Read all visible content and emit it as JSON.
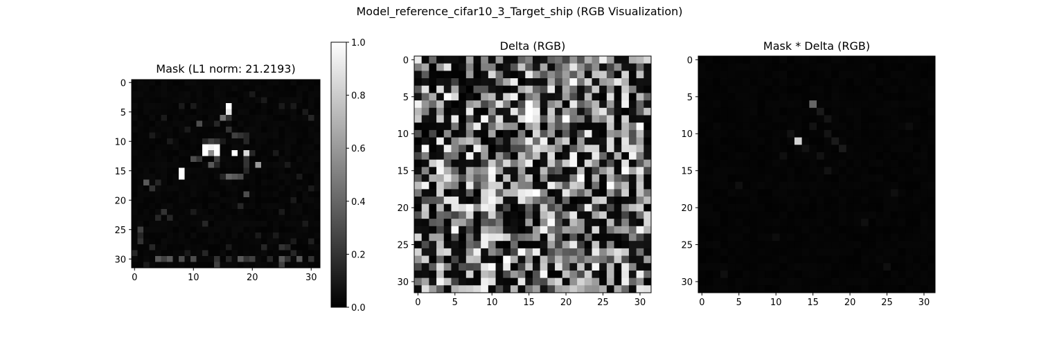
{
  "figure": {
    "title": "Model_reference_cifar10_3_Target_ship (RGB Visualization)"
  },
  "chart_data": [
    {
      "type": "heatmap",
      "title": "Mask (L1 norm: 21.2193)",
      "colormap": "gray",
      "grid": false,
      "size": [
        32,
        32
      ],
      "xticks": [
        0,
        10,
        20,
        30
      ],
      "yticks": [
        0,
        5,
        10,
        15,
        20,
        25,
        30
      ],
      "vmin": 0,
      "vmax": 1,
      "base_level": 0.03,
      "cells": [
        [
          12,
          11,
          1.0
        ],
        [
          13,
          11,
          0.95
        ],
        [
          14,
          11,
          1.0
        ],
        [
          12,
          12,
          1.0
        ],
        [
          13,
          12,
          0.55
        ],
        [
          14,
          12,
          1.0
        ],
        [
          16,
          4,
          1.0
        ],
        [
          16,
          5,
          0.9
        ],
        [
          15,
          6,
          0.45
        ],
        [
          16,
          6,
          0.2
        ],
        [
          8,
          15,
          1.0
        ],
        [
          8,
          16,
          1.0
        ],
        [
          17,
          12,
          1.0
        ],
        [
          19,
          12,
          0.85
        ],
        [
          21,
          14,
          0.6
        ],
        [
          10,
          13,
          0.3
        ],
        [
          11,
          13,
          0.2
        ],
        [
          14,
          13,
          0.25
        ],
        [
          19,
          13,
          0.2
        ],
        [
          12,
          10,
          0.15
        ],
        [
          13,
          10,
          0.25
        ],
        [
          14,
          10,
          0.2
        ],
        [
          11,
          7,
          0.3
        ],
        [
          14,
          7,
          0.15
        ],
        [
          16,
          8,
          0.2
        ],
        [
          17,
          9,
          0.25
        ],
        [
          18,
          9,
          0.2
        ],
        [
          19,
          9,
          0.15
        ],
        [
          19,
          10,
          0.15
        ],
        [
          15,
          10,
          0.1
        ],
        [
          13,
          14,
          0.35
        ],
        [
          14,
          14,
          0.15
        ],
        [
          16,
          16,
          0.4
        ],
        [
          17,
          16,
          0.35
        ],
        [
          18,
          16,
          0.3
        ],
        [
          15,
          16,
          0.15
        ],
        [
          19,
          14,
          0.2
        ],
        [
          19,
          15,
          0.15
        ],
        [
          20,
          12,
          0.15
        ],
        [
          2,
          17,
          0.35
        ],
        [
          3,
          18,
          0.2
        ],
        [
          4,
          17,
          0.15
        ],
        [
          19,
          19,
          0.3
        ],
        [
          18,
          21,
          0.15
        ],
        [
          5,
          22,
          0.2
        ],
        [
          4,
          23,
          0.15
        ],
        [
          6,
          23,
          0.15
        ],
        [
          10,
          22,
          0.1
        ],
        [
          1,
          25,
          0.25
        ],
        [
          1,
          26,
          0.15
        ],
        [
          1,
          27,
          0.2
        ],
        [
          4,
          30,
          0.35
        ],
        [
          5,
          30,
          0.25
        ],
        [
          6,
          30,
          0.35
        ],
        [
          8,
          30,
          0.3
        ],
        [
          10,
          30,
          0.3
        ],
        [
          12,
          29,
          0.15
        ],
        [
          14,
          30,
          0.2
        ],
        [
          14,
          31,
          0.25
        ],
        [
          16,
          30,
          0.15
        ],
        [
          18,
          30,
          0.35
        ],
        [
          19,
          30,
          0.2
        ],
        [
          20,
          30,
          0.25
        ],
        [
          23,
          30,
          0.15
        ],
        [
          25,
          28,
          0.2
        ],
        [
          26,
          28,
          0.15
        ],
        [
          25,
          30,
          0.35
        ],
        [
          25,
          31,
          0.25
        ],
        [
          26,
          30,
          0.2
        ],
        [
          27,
          29,
          0.15
        ],
        [
          28,
          30,
          0.35
        ],
        [
          30,
          30,
          0.2
        ],
        [
          22,
          28,
          0.15
        ],
        [
          21,
          26,
          0.1
        ],
        [
          24,
          26,
          0.1
        ],
        [
          29,
          24,
          0.1
        ],
        [
          27,
          27,
          0.1
        ],
        [
          30,
          27,
          0.12
        ],
        [
          12,
          24,
          0.15
        ],
        [
          3,
          28,
          0.15
        ],
        [
          0,
          29,
          0.15
        ],
        [
          2,
          31,
          0.1
        ],
        [
          9,
          29,
          0.1
        ],
        [
          16,
          28,
          0.1
        ],
        [
          27,
          4,
          0.1
        ],
        [
          29,
          5,
          0.1
        ],
        [
          30,
          6,
          0.15
        ],
        [
          25,
          4,
          0.1
        ],
        [
          22,
          3,
          0.1
        ],
        [
          20,
          2,
          0.1
        ],
        [
          8,
          4,
          0.1
        ],
        [
          5,
          6,
          0.1
        ],
        [
          3,
          9,
          0.1
        ],
        [
          6,
          10,
          0.1
        ],
        [
          9,
          8,
          0.1
        ],
        [
          10,
          4,
          0.1
        ],
        [
          24,
          12,
          0.1
        ],
        [
          26,
          14,
          0.1
        ],
        [
          28,
          16,
          0.1
        ],
        [
          30,
          18,
          0.1
        ],
        [
          27,
          20,
          0.1
        ],
        [
          25,
          22,
          0.1
        ]
      ]
    },
    {
      "type": "heatmap",
      "title": "Delta (RGB)",
      "colormap": "gray",
      "grid": false,
      "size": [
        32,
        32
      ],
      "xticks": [
        0,
        5,
        10,
        15,
        20,
        25,
        30
      ],
      "yticks": [
        0,
        5,
        10,
        15,
        20,
        25,
        30
      ],
      "seed": 73,
      "bright_columns": [
        3,
        5,
        7,
        9,
        10,
        11,
        13,
        14,
        15,
        17,
        18,
        19,
        20,
        21,
        22,
        24,
        26,
        28,
        30
      ],
      "cells": [
        [
          15,
          6,
          1.0
        ],
        [
          15,
          7,
          1.0
        ],
        [
          15,
          8,
          1.0
        ],
        [
          16,
          7,
          0.95
        ],
        [
          16,
          8,
          0.9
        ],
        [
          12,
          27,
          1.0
        ],
        [
          16,
          18,
          1.0
        ],
        [
          15,
          18,
          0.95
        ],
        [
          14,
          19,
          0.9
        ],
        [
          4,
          19,
          0.9
        ],
        [
          5,
          20,
          0.9
        ],
        [
          6,
          20,
          0.85
        ]
      ]
    },
    {
      "type": "heatmap",
      "title": "Mask * Delta (RGB)",
      "colormap": "gray",
      "grid": false,
      "size": [
        32,
        32
      ],
      "xticks": [
        0,
        5,
        10,
        15,
        20,
        25,
        30
      ],
      "yticks": [
        0,
        5,
        10,
        15,
        20,
        25,
        30
      ],
      "base_level": 0.02,
      "cells": [
        [
          13,
          11,
          0.82
        ],
        [
          15,
          6,
          0.4
        ],
        [
          16,
          7,
          0.1
        ],
        [
          17,
          8,
          0.08
        ],
        [
          15,
          9,
          0.07
        ],
        [
          18,
          11,
          0.1
        ],
        [
          19,
          12,
          0.1
        ],
        [
          17,
          10,
          0.08
        ],
        [
          16,
          13,
          0.07
        ],
        [
          14,
          12,
          0.07
        ],
        [
          12,
          10,
          0.07
        ],
        [
          11,
          13,
          0.06
        ],
        [
          17,
          15,
          0.07
        ],
        [
          5,
          17,
          0.06
        ],
        [
          26,
          18,
          0.06
        ],
        [
          22,
          22,
          0.06
        ],
        [
          10,
          24,
          0.05
        ],
        [
          28,
          9,
          0.05
        ],
        [
          3,
          29,
          0.06
        ],
        [
          25,
          28,
          0.06
        ]
      ]
    }
  ],
  "colorbar": {
    "ticks": [
      "0.0",
      "0.2",
      "0.4",
      "0.6",
      "0.8",
      "1.0"
    ]
  }
}
